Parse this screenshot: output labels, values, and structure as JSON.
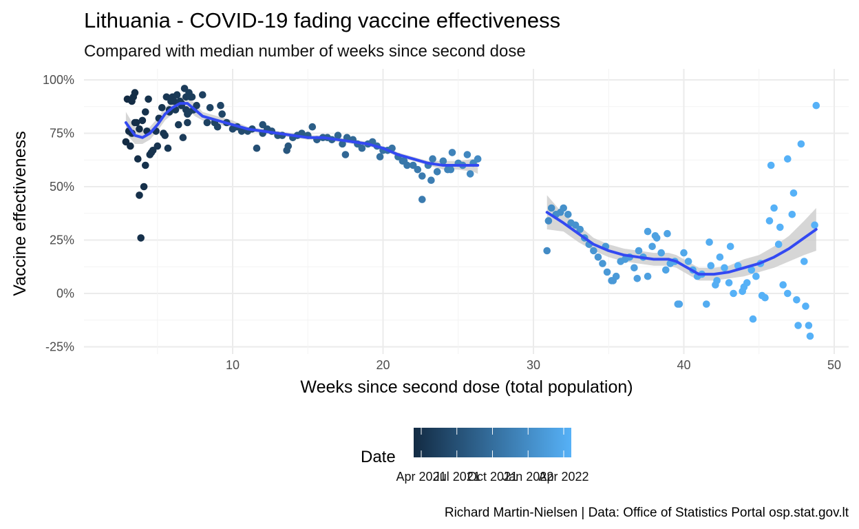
{
  "chart_data": {
    "type": "scatter",
    "title": "Lithuania - COVID-19 fading vaccine effectiveness",
    "subtitle": "Compared with median number of weeks since second dose",
    "xlabel": "Weeks since second dose (total population)",
    "ylabel": "Vaccine effectiveness",
    "caption": "Richard Martin-Nielsen | Data: Office of Statistics Portal osp.stat.gov.lt",
    "xlim": [
      0.5,
      50
    ],
    "ylim": [
      -28,
      104
    ],
    "x_ticks": [
      10,
      20,
      30,
      40,
      50
    ],
    "x_tick_labels": [
      "10",
      "20",
      "30",
      "40",
      "50"
    ],
    "y_ticks": [
      -25,
      0,
      25,
      50,
      75,
      100
    ],
    "y_tick_labels": [
      "-25%",
      "0%",
      "25%",
      "50%",
      "75%",
      "100%"
    ],
    "grid": true,
    "legend": {
      "title": "Date",
      "position": "bottom",
      "tick_labels": [
        "Apr 2021",
        "Jul 2021",
        "Oct 2021",
        "Jan 2022",
        "Apr 2022"
      ],
      "tick_positions": [
        0,
        0.25,
        0.5,
        0.75,
        1
      ],
      "color_low": "#132b43",
      "color_high": "#56b1f7"
    },
    "colors": {
      "point_low": "#132b43",
      "point_high": "#56b1f7",
      "trend": "#3349f2",
      "ribbon": "#cccccc"
    },
    "series": [
      {
        "segment": 1,
        "x": [
          2.9,
          3.0,
          3.1,
          3.2,
          3.3,
          3.4,
          3.5,
          3.6,
          3.7,
          3.8,
          3.9,
          4.0,
          4.1,
          4.2,
          4.3,
          4.4,
          4.5,
          4.6,
          4.7,
          4.9,
          5.0,
          5.1,
          5.3,
          5.4,
          5.5,
          5.6,
          5.7,
          5.8,
          5.9,
          6.0,
          6.1,
          6.2,
          6.3,
          6.4,
          6.5,
          6.6,
          6.7,
          6.8,
          6.9,
          7.0,
          7.1,
          7.2,
          7.3,
          7.4,
          7.6,
          8.0,
          8.3,
          8.5,
          8.8,
          9.0,
          9.3,
          9.6,
          10.0,
          10.3,
          10.6,
          11.0,
          11.3,
          11.6,
          12.0,
          12.3,
          12.6,
          13.0,
          13.3,
          13.6,
          14.0,
          14.3,
          14.6,
          15.0,
          15.3,
          15.6,
          16.0,
          16.3,
          16.6,
          17.0,
          17.3,
          17.6,
          18.0,
          18.3,
          18.6,
          19.0,
          19.3,
          19.6,
          20.0,
          20.3,
          20.6,
          21.0,
          21.3,
          21.6,
          22.0,
          22.3,
          22.6,
          23.0,
          23.3,
          23.6,
          24.0,
          24.3,
          24.6,
          25.0,
          25.3,
          25.6,
          26.0,
          26.3,
          5.8,
          6.6,
          7.0,
          4.2,
          3.8,
          3.3,
          3.5,
          6.9,
          7.1,
          9.2,
          12.0,
          13.7,
          22.6,
          17.5,
          19.8,
          21.4,
          23.2,
          24.5,
          25.8
        ],
        "y": [
          71,
          91,
          76,
          69,
          90,
          92,
          80,
          80,
          63,
          77,
          26,
          81,
          50,
          85,
          76,
          91,
          65,
          66,
          67,
          76,
          69,
          82,
          87,
          75,
          74,
          92,
          68,
          85,
          90,
          92,
          90,
          86,
          93,
          79,
          90,
          88,
          73,
          96,
          92,
          80,
          94,
          92,
          92,
          86,
          88,
          93,
          80,
          87,
          80,
          78,
          84,
          80,
          77,
          78,
          76,
          76,
          77,
          68,
          75,
          77,
          76,
          74,
          74,
          67,
          73,
          74,
          75,
          74,
          78,
          72,
          73,
          73,
          72,
          74,
          70,
          73,
          72,
          70,
          68,
          70,
          71,
          69,
          67,
          67,
          68,
          64,
          62,
          60,
          60,
          58,
          55,
          60,
          63,
          57,
          62,
          58,
          66,
          61,
          60,
          65,
          61,
          63,
          86,
          89,
          84,
          60,
          46,
          75,
          94,
          86,
          85,
          88,
          79,
          69,
          44,
          65,
          64,
          62,
          53,
          58,
          56
        ],
        "t": [
          0.0,
          0.0,
          0.01,
          0.01,
          0.01,
          0.02,
          0.02,
          0.02,
          0.03,
          0.03,
          0.04,
          0.04,
          0.04,
          0.05,
          0.05,
          0.05,
          0.06,
          0.06,
          0.06,
          0.07,
          0.07,
          0.07,
          0.08,
          0.08,
          0.08,
          0.09,
          0.09,
          0.09,
          0.1,
          0.1,
          0.1,
          0.11,
          0.11,
          0.11,
          0.12,
          0.12,
          0.12,
          0.13,
          0.13,
          0.13,
          0.14,
          0.14,
          0.14,
          0.15,
          0.15,
          0.16,
          0.17,
          0.18,
          0.18,
          0.19,
          0.2,
          0.21,
          0.22,
          0.23,
          0.24,
          0.25,
          0.26,
          0.27,
          0.28,
          0.29,
          0.3,
          0.31,
          0.32,
          0.33,
          0.34,
          0.35,
          0.36,
          0.37,
          0.38,
          0.39,
          0.4,
          0.41,
          0.42,
          0.43,
          0.44,
          0.45,
          0.46,
          0.47,
          0.48,
          0.49,
          0.5,
          0.51,
          0.52,
          0.53,
          0.54,
          0.55,
          0.56,
          0.57,
          0.58,
          0.59,
          0.6,
          0.61,
          0.62,
          0.63,
          0.64,
          0.65,
          0.66,
          0.67,
          0.68,
          0.69,
          0.7,
          0.71,
          0.09,
          0.12,
          0.14,
          0.05,
          0.04,
          0.02,
          0.02,
          0.13,
          0.14,
          0.19,
          0.28,
          0.33,
          0.6,
          0.45,
          0.52,
          0.57,
          0.62,
          0.66,
          0.7
        ]
      },
      {
        "segment": 2,
        "x": [
          30.9,
          31.0,
          31.2,
          31.5,
          31.8,
          32.0,
          32.3,
          32.5,
          32.8,
          33.1,
          33.4,
          33.7,
          34.0,
          34.3,
          34.6,
          34.9,
          35.2,
          35.5,
          35.8,
          36.1,
          36.4,
          36.7,
          37.0,
          37.3,
          37.6,
          37.9,
          38.2,
          38.5,
          38.8,
          39.1,
          39.4,
          39.7,
          40.0,
          40.3,
          40.6,
          40.9,
          41.2,
          41.5,
          41.8,
          42.1,
          42.4,
          42.7,
          43.0,
          43.3,
          43.6,
          43.9,
          44.2,
          44.5,
          44.8,
          45.1,
          45.4,
          45.7,
          46.0,
          46.3,
          46.6,
          46.9,
          47.2,
          47.5,
          47.8,
          48.1,
          48.4,
          48.7,
          48.8,
          34.8,
          35.3,
          36.9,
          38.1,
          39.6,
          41.7,
          43.1,
          44.6,
          45.8,
          46.4,
          47.6,
          48.3,
          42.2,
          44.0,
          45.2,
          46.9,
          47.3,
          48.0,
          37.6,
          38.9
        ],
        "y": [
          20,
          34,
          40,
          37,
          38,
          40,
          37,
          33,
          32,
          30,
          26,
          23,
          20,
          17,
          14,
          10,
          6,
          8,
          15,
          16,
          17,
          12,
          20,
          17,
          29,
          22,
          26,
          19,
          11,
          14,
          15,
          -5,
          19,
          15,
          11,
          8,
          9,
          -5,
          13,
          4,
          17,
          12,
          5,
          0,
          13,
          1,
          5,
          11,
          8,
          14,
          -2,
          34,
          40,
          23,
          4,
          63,
          37,
          -3,
          70,
          -6,
          -20,
          32,
          88,
          22,
          6,
          7,
          27,
          -5,
          24,
          22,
          -12,
          60,
          31,
          -15,
          -15,
          6,
          3,
          -1,
          0,
          47,
          15,
          8,
          28
        ],
        "t": [
          0.72,
          0.72,
          0.73,
          0.74,
          0.74,
          0.75,
          0.76,
          0.76,
          0.77,
          0.78,
          0.78,
          0.79,
          0.8,
          0.8,
          0.81,
          0.82,
          0.82,
          0.83,
          0.84,
          0.84,
          0.85,
          0.86,
          0.86,
          0.87,
          0.88,
          0.88,
          0.89,
          0.9,
          0.9,
          0.91,
          0.92,
          0.92,
          0.93,
          0.94,
          0.94,
          0.95,
          0.96,
          0.96,
          0.97,
          0.98,
          0.98,
          0.99,
          0.99,
          1.0,
          1.0,
          1.0,
          1.0,
          1.0,
          1.0,
          1.0,
          1.0,
          1.0,
          1.0,
          1.0,
          1.0,
          1.0,
          1.0,
          1.0,
          1.0,
          1.0,
          1.0,
          1.0,
          1.0,
          0.81,
          0.82,
          0.86,
          0.88,
          0.92,
          0.96,
          0.99,
          1.0,
          1.0,
          1.0,
          1.0,
          1.0,
          0.98,
          1.0,
          1.0,
          1.0,
          1.0,
          1.0,
          0.87,
          0.9
        ]
      }
    ],
    "trend": [
      {
        "x": [
          2.9,
          3.5,
          4.0,
          4.5,
          5.0,
          5.5,
          6.0,
          6.5,
          7.0,
          7.5,
          8.0,
          9.0,
          10.0,
          11.0,
          12.0,
          13.0,
          14.0,
          15.0,
          16.0,
          17.0,
          18.0,
          19.0,
          20.0,
          21.0,
          22.0,
          23.0,
          24.0,
          25.0,
          26.0,
          26.3
        ],
        "y": [
          80,
          74,
          73,
          75,
          79,
          84,
          87,
          89,
          89,
          86,
          83,
          81,
          79,
          77,
          76,
          75,
          74,
          73,
          73,
          72,
          71,
          70,
          68,
          65,
          63,
          61,
          60,
          60,
          60,
          60
        ],
        "lower": [
          75,
          70,
          70,
          72,
          76,
          81,
          84,
          86,
          86,
          83,
          81,
          79,
          78,
          76,
          75,
          74,
          73,
          72,
          72,
          71,
          70,
          69,
          67,
          64,
          62,
          60,
          58,
          58,
          57,
          56
        ],
        "upper": [
          85,
          78,
          76,
          78,
          82,
          87,
          90,
          92,
          92,
          89,
          85,
          83,
          81,
          78,
          77,
          76,
          75,
          74,
          74,
          73,
          72,
          71,
          69,
          66,
          64,
          62,
          62,
          62,
          63,
          64
        ]
      },
      {
        "x": [
          30.9,
          32.0,
          33.0,
          34.0,
          35.0,
          36.0,
          37.0,
          38.0,
          39.0,
          39.5,
          40.0,
          40.5,
          41.0,
          41.5,
          42.0,
          43.0,
          44.0,
          45.0,
          46.0,
          47.0,
          48.0,
          48.8
        ],
        "y": [
          38,
          33,
          28,
          23,
          20,
          18,
          17,
          16,
          16,
          15,
          13,
          11,
          9,
          9,
          9,
          10,
          12,
          14,
          17,
          21,
          26,
          30
        ],
        "lower": [
          30,
          29,
          24,
          20,
          17,
          15,
          14,
          13,
          13,
          12,
          10,
          8,
          6,
          6,
          6,
          7,
          8,
          10,
          12,
          15,
          18,
          20
        ],
        "upper": [
          46,
          37,
          32,
          26,
          23,
          21,
          20,
          19,
          19,
          18,
          16,
          14,
          12,
          12,
          12,
          13,
          16,
          18,
          22,
          27,
          34,
          40
        ]
      }
    ]
  }
}
